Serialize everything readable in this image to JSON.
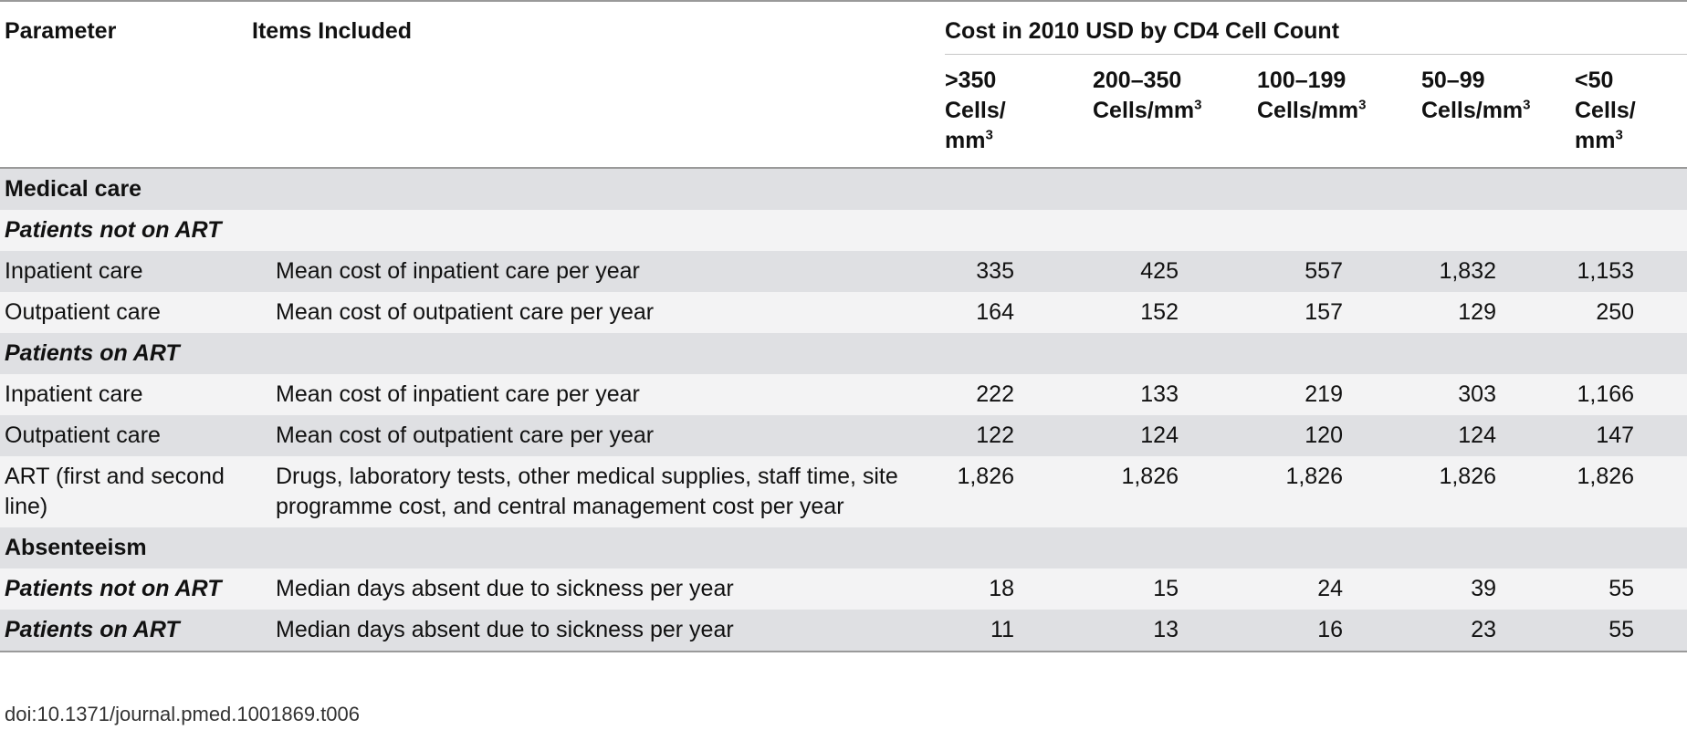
{
  "header": {
    "parameter": "Parameter",
    "items_included": "Items Included",
    "cost_group": "Cost in 2010 USD by CD4 Cell Count",
    "cd4_columns": [
      {
        "line1": ">350",
        "line2": "Cells/",
        "line3": "mm",
        "sup": "3"
      },
      {
        "line1": "200–350",
        "line2": "Cells/mm",
        "sup": "3"
      },
      {
        "line1": "100–199",
        "line2": "Cells/mm",
        "sup": "3"
      },
      {
        "line1": "50–99",
        "line2": "Cells/mm",
        "sup": "3"
      },
      {
        "line1": "<50",
        "line2": "Cells/",
        "line3": "mm",
        "sup": "3"
      }
    ]
  },
  "rows": [
    {
      "param": "Medical care"
    },
    {
      "param": "Patients not on ART"
    },
    {
      "param": "Inpatient care",
      "items": "Mean cost of inpatient care per year",
      "values": [
        "335",
        "425",
        "557",
        "1,832",
        "1,153"
      ]
    },
    {
      "param": "Outpatient care",
      "items": "Mean cost of outpatient care per year",
      "values": [
        "164",
        "152",
        "157",
        "129",
        "250"
      ]
    },
    {
      "param": "Patients on ART"
    },
    {
      "param": "Inpatient care",
      "items": "Mean cost of inpatient care per year",
      "values": [
        "222",
        "133",
        "219",
        "303",
        "1,166"
      ]
    },
    {
      "param": "Outpatient care",
      "items": "Mean cost of outpatient care per year",
      "values": [
        "122",
        "124",
        "120",
        "124",
        "147"
      ]
    },
    {
      "param": "ART (first and second line)",
      "items": "Drugs, laboratory tests, other medical supplies, staff time, site programme cost, and central management cost per year",
      "values": [
        "1,826",
        "1,826",
        "1,826",
        "1,826",
        "1,826"
      ]
    },
    {
      "param": "Absenteeism"
    },
    {
      "param": "Patients not on ART",
      "items": "Median days absent due to sickness per year",
      "values": [
        "18",
        "15",
        "24",
        "39",
        "55"
      ]
    },
    {
      "param": "Patients on ART",
      "items": "Median days absent due to sickness per year",
      "values": [
        "11",
        "13",
        "16",
        "23",
        "55"
      ]
    }
  ],
  "footer": {
    "doi": "doi:10.1371/journal.pmed.1001869.t006"
  }
}
